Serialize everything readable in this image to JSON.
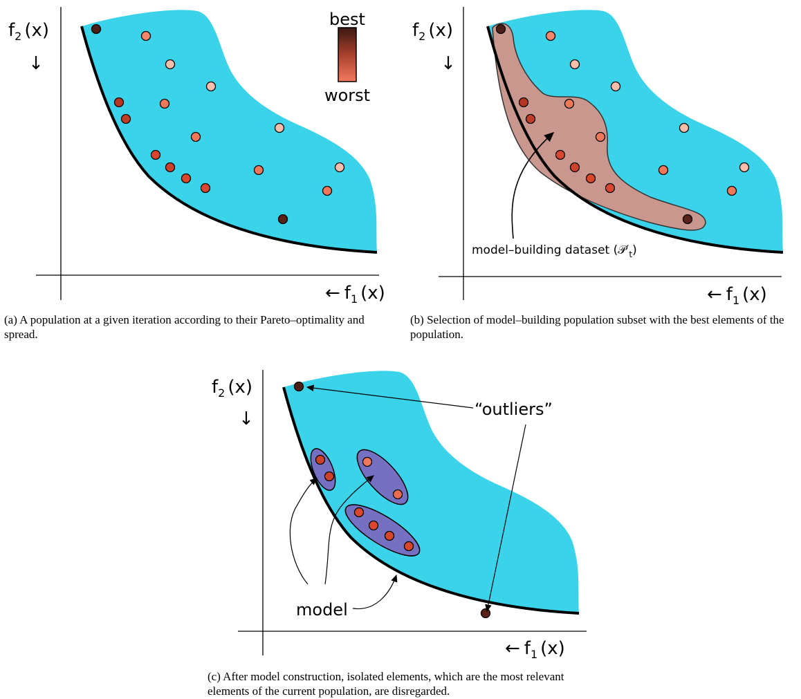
{
  "colors": {
    "region": "#3ad3ea",
    "front": "#000000",
    "subset_fill": "#c9978d",
    "cluster_fill": "#7570c2",
    "best": "#4a1f17",
    "worst": "#f7b2a0"
  },
  "axis_labels": {
    "f2_letter": "f",
    "f2_sub": "2",
    "f2_arg": "(x)",
    "f1_letter": "f",
    "f1_sub": "1",
    "f1_arg": "(x)",
    "down_arrow": "↓",
    "left_arrow": "←"
  },
  "legend": {
    "best": "best",
    "worst": "worst"
  },
  "panel_b": {
    "dataset_label": "model–building dataset (𝒫′",
    "dataset_sub": "t",
    "dataset_close": ")"
  },
  "panel_c": {
    "outliers_label": "“outliers”",
    "model_label": "model"
  },
  "captions": {
    "a": "(a) A population at a given iteration according to their Pareto–optimality and spread.",
    "b": "(b) Selection of model–building population subset with the best elements of the population.",
    "c": "(c) After model construction, isolated elements, which are the most relevant elements of the current population, are disregarded."
  }
}
